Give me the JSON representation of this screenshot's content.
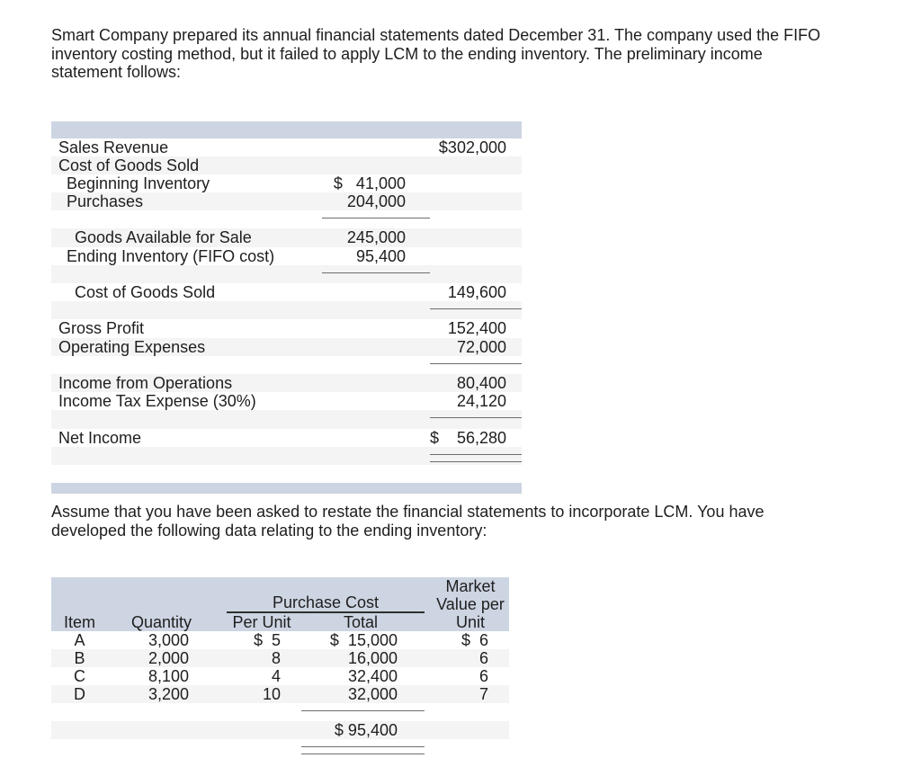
{
  "colors": {
    "band": "#cdd5e2",
    "shade": "#f4f4f4",
    "rule": "#6e6e6e",
    "rule-dark": "#2f2f2f",
    "text": "#1e1e1e"
  },
  "intro": {
    "text": "Smart Company prepared its annual financial statements dated December 31. The company used the FIFO\ninventory costing method, but it failed to apply LCM to the ending inventory. The preliminary income\nstatement follows:"
  },
  "middle": {
    "text": "Assume that you have been asked to restate the financial statements to incorporate LCM. You have\ndeveloped the following data relating to the ending inventory:"
  },
  "income_statement": {
    "rows": [
      {
        "label": "Sales Revenue",
        "indent": 0,
        "mid": "",
        "right": "$302,000",
        "shade": false,
        "rule": ""
      },
      {
        "label": "Cost of Goods Sold",
        "indent": 0,
        "mid": "",
        "right": "",
        "shade": true,
        "rule": ""
      },
      {
        "label": "Beginning Inventory",
        "indent": 1,
        "mid": "$   41,000",
        "right": "",
        "shade": false,
        "rule": ""
      },
      {
        "label": "Purchases",
        "indent": 1,
        "mid": "204,000",
        "right": "",
        "shade": true,
        "rule": ""
      },
      {
        "label": "",
        "indent": 0,
        "mid": "",
        "right": "",
        "shade": false,
        "rule": "mid"
      },
      {
        "label": "Goods Available for Sale",
        "indent": 2,
        "mid": "245,000",
        "right": "",
        "shade": true,
        "rule": ""
      },
      {
        "label": "Ending Inventory (FIFO cost)",
        "indent": 1,
        "mid": "95,400",
        "right": "",
        "shade": false,
        "rule": ""
      },
      {
        "label": "",
        "indent": 0,
        "mid": "",
        "right": "",
        "shade": true,
        "rule": "mid"
      },
      {
        "label": "Cost of Goods Sold",
        "indent": 2,
        "mid": "",
        "right": "149,600",
        "shade": false,
        "rule": ""
      },
      {
        "label": "",
        "indent": 0,
        "mid": "",
        "right": "",
        "shade": true,
        "rule": "right"
      },
      {
        "label": "Gross Profit",
        "indent": 0,
        "mid": "",
        "right": "152,400",
        "shade": false,
        "rule": ""
      },
      {
        "label": "Operating Expenses",
        "indent": 0,
        "mid": "",
        "right": "72,000",
        "shade": true,
        "rule": ""
      },
      {
        "label": "",
        "indent": 0,
        "mid": "",
        "right": "",
        "shade": false,
        "rule": "right"
      },
      {
        "label": "Income from Operations",
        "indent": 0,
        "mid": "",
        "right": "80,400",
        "shade": true,
        "rule": ""
      },
      {
        "label": "Income Tax Expense (30%)",
        "indent": 0,
        "mid": "",
        "right": "24,120",
        "shade": false,
        "rule": ""
      },
      {
        "label": "",
        "indent": 0,
        "mid": "",
        "right": "",
        "shade": true,
        "rule": "right"
      },
      {
        "label": "Net Income",
        "indent": 0,
        "mid": "",
        "right": "$    56,280",
        "shade": false,
        "rule": ""
      },
      {
        "label": "",
        "indent": 0,
        "mid": "",
        "right": "",
        "shade": true,
        "rule": "dblright"
      },
      {
        "label": "",
        "indent": 0,
        "mid": "",
        "right": "",
        "shade": false,
        "rule": ""
      }
    ]
  },
  "inventory_table": {
    "headers": {
      "item": "Item",
      "quantity": "Quantity",
      "purchase_cost": "Purchase Cost",
      "per_unit": "Per Unit",
      "total": "Total",
      "market_value": "Market\nValue per\nUnit"
    },
    "rows": [
      {
        "item": "A",
        "quantity": "3,000",
        "per_unit": "$  5",
        "total": "$  15,000",
        "market": "$  6",
        "shade": false
      },
      {
        "item": "B",
        "quantity": "2,000",
        "per_unit": "8",
        "total": "16,000",
        "market": "6",
        "shade": true
      },
      {
        "item": "C",
        "quantity": "8,100",
        "per_unit": "4",
        "total": "32,400",
        "market": "6",
        "shade": false
      },
      {
        "item": "D",
        "quantity": "3,200",
        "per_unit": "10",
        "total": "32,000",
        "market": "7",
        "shade": true
      }
    ],
    "total_value": "$ 95,400"
  }
}
